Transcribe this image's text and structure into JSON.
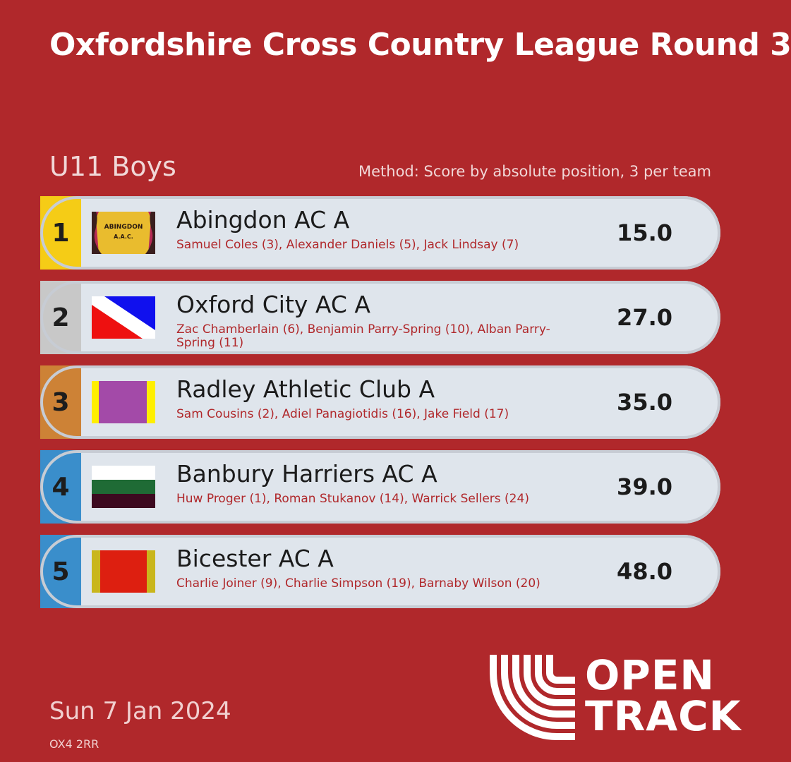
{
  "header": {
    "title": "Oxfordshire Cross Country League Round 3",
    "category": "U11 Boys",
    "method": "Method: Score by absolute position, 3 per team"
  },
  "results": [
    {
      "position": "1",
      "team": "Abingdon AC A",
      "members": "Samuel Coles (3), Alexander Daniels (5), Jack Lindsay (7)",
      "score": "15.0",
      "badge_color": "#f5cc16",
      "flag_text_1": "ABINGDON",
      "flag_text_2": "A.A.C."
    },
    {
      "position": "2",
      "team": "Oxford City AC A",
      "members": "Zac Chamberlain (6), Benjamin Parry-Spring (10), Alban Parry-Spring (11)",
      "score": "27.0",
      "badge_color": "#c8c8c8"
    },
    {
      "position": "3",
      "team": "Radley Athletic Club A",
      "members": "Sam Cousins (2), Adiel Panagiotidis (16), Jake Field (17)",
      "score": "35.0",
      "badge_color": "#cd8236"
    },
    {
      "position": "4",
      "team": "Banbury Harriers AC A",
      "members": "Huw Proger (1), Roman Stukanov (14), Warrick Sellers (24)",
      "score": "39.0",
      "badge_color": "#3a8ecb"
    },
    {
      "position": "5",
      "team": "Bicester AC A",
      "members": "Charlie Joiner (9), Charlie Simpson (19), Barnaby Wilson (20)",
      "score": "48.0",
      "badge_color": "#3a8ecb"
    }
  ],
  "footer": {
    "date": "Sun 7 Jan 2024",
    "venue": "OX4 2RR",
    "logo_line_1": "OPEN",
    "logo_line_2": "TRACK"
  },
  "colors": {
    "background": "#b0282b",
    "row": "#dfe5ec",
    "accent_text": "#b0282b"
  }
}
